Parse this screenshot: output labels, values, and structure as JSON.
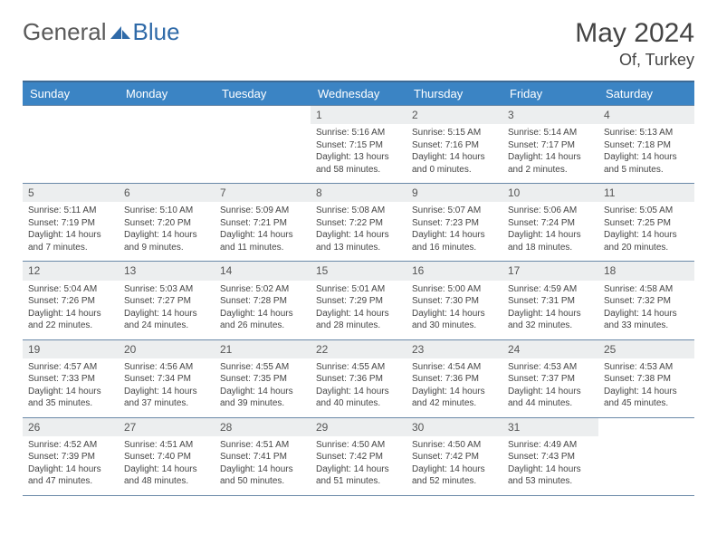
{
  "brand": {
    "part1": "General",
    "part2": "Blue",
    "text_gray": "#5a5a5a",
    "text_blue": "#2f6aa8",
    "logo_fill": "#2f6aa8"
  },
  "title": "May 2024",
  "location": "Of, Turkey",
  "header_bg": "#3b84c4",
  "header_border_top": "#3d6a95",
  "cell_border": "#6a89a8",
  "daynum_bg": "#eceeef",
  "weekdays": [
    "Sunday",
    "Monday",
    "Tuesday",
    "Wednesday",
    "Thursday",
    "Friday",
    "Saturday"
  ],
  "leading_blanks": 3,
  "days": [
    {
      "n": 1,
      "sunrise": "5:16 AM",
      "sunset": "7:15 PM",
      "daylight": "13 hours and 58 minutes."
    },
    {
      "n": 2,
      "sunrise": "5:15 AM",
      "sunset": "7:16 PM",
      "daylight": "14 hours and 0 minutes."
    },
    {
      "n": 3,
      "sunrise": "5:14 AM",
      "sunset": "7:17 PM",
      "daylight": "14 hours and 2 minutes."
    },
    {
      "n": 4,
      "sunrise": "5:13 AM",
      "sunset": "7:18 PM",
      "daylight": "14 hours and 5 minutes."
    },
    {
      "n": 5,
      "sunrise": "5:11 AM",
      "sunset": "7:19 PM",
      "daylight": "14 hours and 7 minutes."
    },
    {
      "n": 6,
      "sunrise": "5:10 AM",
      "sunset": "7:20 PM",
      "daylight": "14 hours and 9 minutes."
    },
    {
      "n": 7,
      "sunrise": "5:09 AM",
      "sunset": "7:21 PM",
      "daylight": "14 hours and 11 minutes."
    },
    {
      "n": 8,
      "sunrise": "5:08 AM",
      "sunset": "7:22 PM",
      "daylight": "14 hours and 13 minutes."
    },
    {
      "n": 9,
      "sunrise": "5:07 AM",
      "sunset": "7:23 PM",
      "daylight": "14 hours and 16 minutes."
    },
    {
      "n": 10,
      "sunrise": "5:06 AM",
      "sunset": "7:24 PM",
      "daylight": "14 hours and 18 minutes."
    },
    {
      "n": 11,
      "sunrise": "5:05 AM",
      "sunset": "7:25 PM",
      "daylight": "14 hours and 20 minutes."
    },
    {
      "n": 12,
      "sunrise": "5:04 AM",
      "sunset": "7:26 PM",
      "daylight": "14 hours and 22 minutes."
    },
    {
      "n": 13,
      "sunrise": "5:03 AM",
      "sunset": "7:27 PM",
      "daylight": "14 hours and 24 minutes."
    },
    {
      "n": 14,
      "sunrise": "5:02 AM",
      "sunset": "7:28 PM",
      "daylight": "14 hours and 26 minutes."
    },
    {
      "n": 15,
      "sunrise": "5:01 AM",
      "sunset": "7:29 PM",
      "daylight": "14 hours and 28 minutes."
    },
    {
      "n": 16,
      "sunrise": "5:00 AM",
      "sunset": "7:30 PM",
      "daylight": "14 hours and 30 minutes."
    },
    {
      "n": 17,
      "sunrise": "4:59 AM",
      "sunset": "7:31 PM",
      "daylight": "14 hours and 32 minutes."
    },
    {
      "n": 18,
      "sunrise": "4:58 AM",
      "sunset": "7:32 PM",
      "daylight": "14 hours and 33 minutes."
    },
    {
      "n": 19,
      "sunrise": "4:57 AM",
      "sunset": "7:33 PM",
      "daylight": "14 hours and 35 minutes."
    },
    {
      "n": 20,
      "sunrise": "4:56 AM",
      "sunset": "7:34 PM",
      "daylight": "14 hours and 37 minutes."
    },
    {
      "n": 21,
      "sunrise": "4:55 AM",
      "sunset": "7:35 PM",
      "daylight": "14 hours and 39 minutes."
    },
    {
      "n": 22,
      "sunrise": "4:55 AM",
      "sunset": "7:36 PM",
      "daylight": "14 hours and 40 minutes."
    },
    {
      "n": 23,
      "sunrise": "4:54 AM",
      "sunset": "7:36 PM",
      "daylight": "14 hours and 42 minutes."
    },
    {
      "n": 24,
      "sunrise": "4:53 AM",
      "sunset": "7:37 PM",
      "daylight": "14 hours and 44 minutes."
    },
    {
      "n": 25,
      "sunrise": "4:53 AM",
      "sunset": "7:38 PM",
      "daylight": "14 hours and 45 minutes."
    },
    {
      "n": 26,
      "sunrise": "4:52 AM",
      "sunset": "7:39 PM",
      "daylight": "14 hours and 47 minutes."
    },
    {
      "n": 27,
      "sunrise": "4:51 AM",
      "sunset": "7:40 PM",
      "daylight": "14 hours and 48 minutes."
    },
    {
      "n": 28,
      "sunrise": "4:51 AM",
      "sunset": "7:41 PM",
      "daylight": "14 hours and 50 minutes."
    },
    {
      "n": 29,
      "sunrise": "4:50 AM",
      "sunset": "7:42 PM",
      "daylight": "14 hours and 51 minutes."
    },
    {
      "n": 30,
      "sunrise": "4:50 AM",
      "sunset": "7:42 PM",
      "daylight": "14 hours and 52 minutes."
    },
    {
      "n": 31,
      "sunrise": "4:49 AM",
      "sunset": "7:43 PM",
      "daylight": "14 hours and 53 minutes."
    }
  ],
  "labels": {
    "sunrise": "Sunrise: ",
    "sunset": "Sunset: ",
    "daylight": "Daylight: "
  }
}
